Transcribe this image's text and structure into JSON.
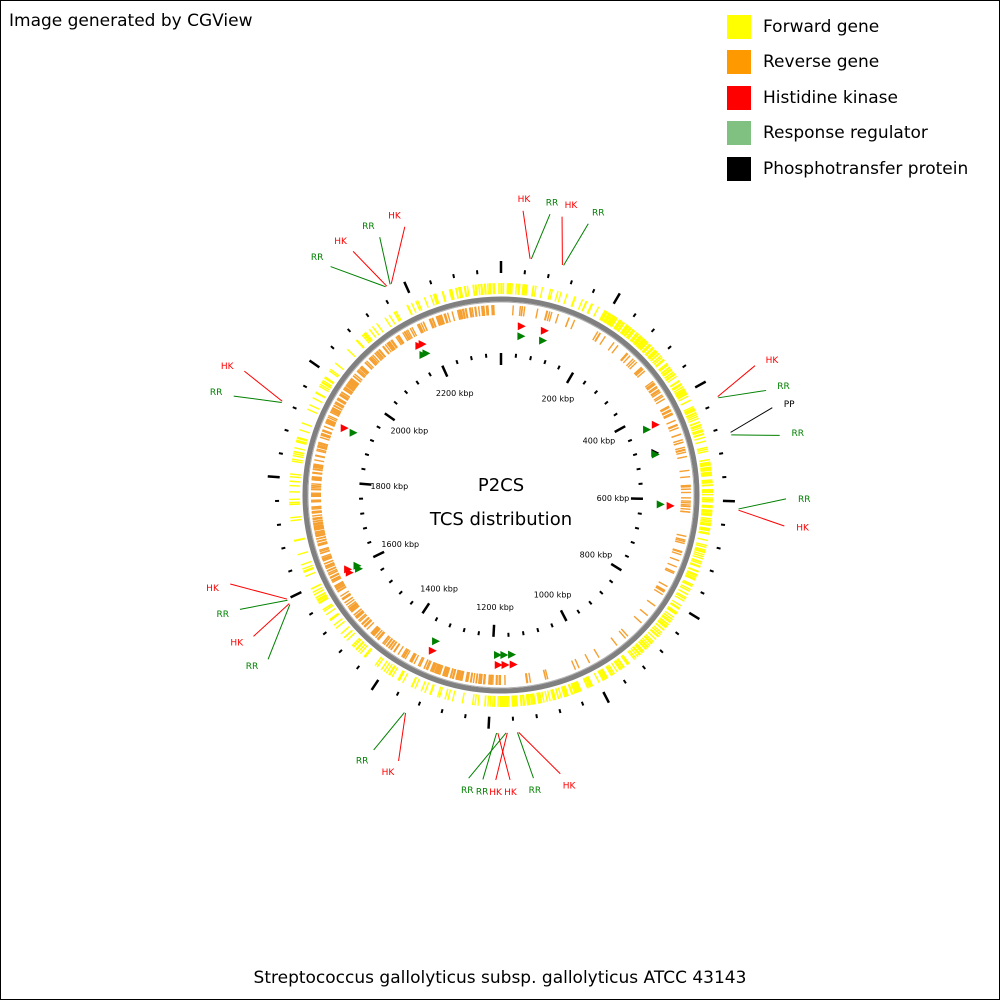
{
  "credit": "Image generated by CGView",
  "legend": [
    {
      "label": "Forward gene",
      "color": "#ffff00"
    },
    {
      "label": "Reverse gene",
      "color": "#ff9900"
    },
    {
      "label": "Histidine kinase",
      "color": "#ff0000"
    },
    {
      "label": "Response regulator",
      "color": "#80c080"
    },
    {
      "label": "Phosphotransfer protein",
      "color": "#000000"
    }
  ],
  "center_title": "P2CS",
  "center_subtitle": "TCS distribution",
  "organism": "Streptococcus gallolyticus subsp. gallolyticus ATCC 43143",
  "colors": {
    "forward": "#ffff00",
    "reverse": "#f5a030",
    "hk": "#ff0000",
    "rr": "#008000",
    "pp": "#000000",
    "backbone": "#808080"
  },
  "genome": {
    "length_kbp": 2360,
    "tick_labels": [
      {
        "kbp": 200,
        "text": "200 kbp"
      },
      {
        "kbp": 400,
        "text": "400 kbp"
      },
      {
        "kbp": 600,
        "text": "600 kbp"
      },
      {
        "kbp": 800,
        "text": "800 kbp"
      },
      {
        "kbp": 1000,
        "text": "1000 kbp"
      },
      {
        "kbp": 1200,
        "text": "1200 kbp"
      },
      {
        "kbp": 1400,
        "text": "1400 kbp"
      },
      {
        "kbp": 1600,
        "text": "1600 kbp"
      },
      {
        "kbp": 1800,
        "text": "1800 kbp"
      },
      {
        "kbp": 2000,
        "text": "2000 kbp"
      },
      {
        "kbp": 2200,
        "text": "2200 kbp"
      }
    ]
  },
  "features": [
    {
      "label": "HK",
      "type": "hk",
      "kbp": 46
    },
    {
      "label": "RR",
      "type": "rr",
      "kbp": 48
    },
    {
      "label": "HK",
      "type": "hk",
      "kbp": 98
    },
    {
      "label": "RR",
      "type": "rr",
      "kbp": 100
    },
    {
      "label": "HK",
      "type": "hk",
      "kbp": 430
    },
    {
      "label": "RR",
      "type": "rr",
      "kbp": 432
    },
    {
      "label": "PP",
      "type": "pp",
      "kbp": 490
    },
    {
      "label": "RR",
      "type": "rr",
      "kbp": 494
    },
    {
      "label": "RR",
      "type": "rr",
      "kbp": 612
    },
    {
      "label": "HK",
      "type": "hk",
      "kbp": 614
    },
    {
      "label": "HK",
      "type": "hk",
      "kbp": 1152
    },
    {
      "label": "RR",
      "type": "rr",
      "kbp": 1154
    },
    {
      "label": "HK",
      "type": "hk",
      "kbp": 1170
    },
    {
      "label": "RR",
      "type": "rr",
      "kbp": 1172
    },
    {
      "label": "HK",
      "type": "hk",
      "kbp": 1185
    },
    {
      "label": "RR",
      "type": "rr",
      "kbp": 1187
    },
    {
      "label": "HK",
      "type": "hk",
      "kbp": 1335
    },
    {
      "label": "RR",
      "type": "rr",
      "kbp": 1337
    },
    {
      "label": "RR",
      "type": "rr",
      "kbp": 1590
    },
    {
      "label": "HK",
      "type": "hk",
      "kbp": 1592
    },
    {
      "label": "RR",
      "type": "rr",
      "kbp": 1598
    },
    {
      "label": "HK",
      "type": "hk",
      "kbp": 1600
    },
    {
      "label": "RR",
      "type": "rr",
      "kbp": 1920
    },
    {
      "label": "HK",
      "type": "hk",
      "kbp": 1922
    },
    {
      "label": "RR",
      "type": "rr",
      "kbp": 2170
    },
    {
      "label": "HK",
      "type": "hk",
      "kbp": 2172
    },
    {
      "label": "RR",
      "type": "rr",
      "kbp": 2178
    },
    {
      "label": "HK",
      "type": "hk",
      "kbp": 2180
    }
  ]
}
